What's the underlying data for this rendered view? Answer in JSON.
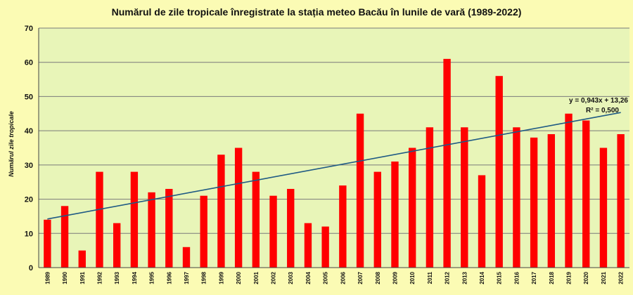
{
  "chart_data": {
    "type": "bar",
    "title": "Numărul de zile tropicale înregistrate la stația meteo Bacău în lunile de vară (1989-2022)",
    "xlabel": "",
    "ylabel": "Numărul zile tropicale",
    "ylim": [
      0,
      70
    ],
    "yticks": [
      "0",
      "10",
      "20",
      "30",
      "40",
      "50",
      "60",
      "70"
    ],
    "grid": true,
    "categories": [
      "1989",
      "1990",
      "1991",
      "1992",
      "1993",
      "1994",
      "1995",
      "1996",
      "1997",
      "1998",
      "1999",
      "2000",
      "2001",
      "2002",
      "2003",
      "2004",
      "2005",
      "2006",
      "2007",
      "2008",
      "2009",
      "2010",
      "2011",
      "2012",
      "2013",
      "2014",
      "2015",
      "2016",
      "2017",
      "2018",
      "2019",
      "2020",
      "2021",
      "2022"
    ],
    "values": [
      14,
      18,
      5,
      28,
      13,
      28,
      22,
      23,
      6,
      21,
      33,
      35,
      28,
      21,
      23,
      13,
      12,
      24,
      45,
      28,
      31,
      35,
      41,
      61,
      41,
      27,
      56,
      41,
      38,
      39,
      45,
      43,
      35,
      39
    ],
    "trendline": {
      "slope": 0.943,
      "intercept": 13.26
    },
    "annotations": [
      "y = 0,943x + 13,26",
      "R² = 0,500"
    ],
    "colors": {
      "bar": "#ff0000",
      "trend": "#1f5a84",
      "plot_bg": "#e8f5b8",
      "page_bg": "#fbfbb4",
      "grid": "#7a7a7a"
    }
  }
}
